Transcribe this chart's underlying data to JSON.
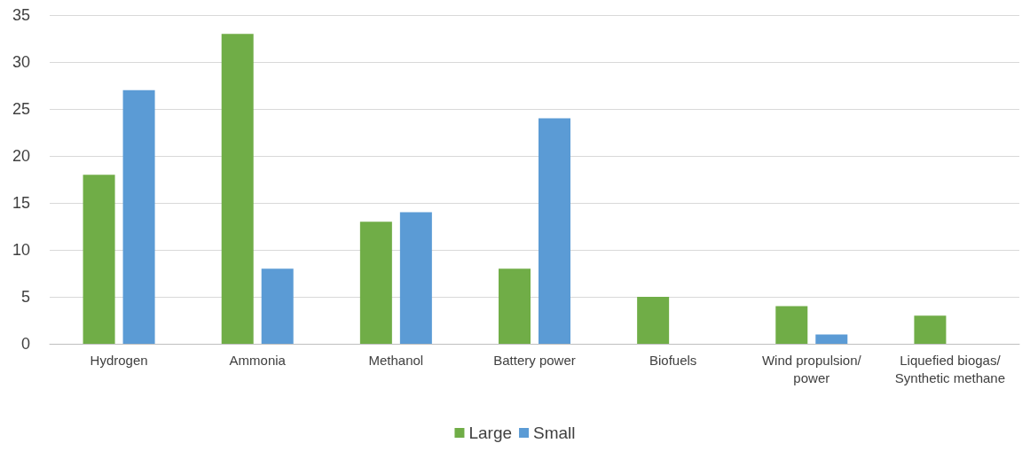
{
  "chart_data": {
    "type": "bar",
    "categories": [
      "Hydrogen",
      "Ammonia",
      "Methanol",
      "Battery power",
      "Biofuels",
      "Wind propulsion/power",
      "Liquefied biogas/Synthetic methane"
    ],
    "series": [
      {
        "name": "Large",
        "color": "#70ad47",
        "values": [
          18,
          33,
          13,
          8,
          5,
          4,
          3
        ]
      },
      {
        "name": "Small",
        "color": "#5b9bd5",
        "values": [
          27,
          8,
          14,
          24,
          0,
          1,
          0
        ]
      }
    ],
    "ylim": [
      0,
      35
    ],
    "yticks": [
      0,
      5,
      10,
      15,
      20,
      25,
      30,
      35
    ],
    "grid": "y",
    "legend": "bottom"
  }
}
